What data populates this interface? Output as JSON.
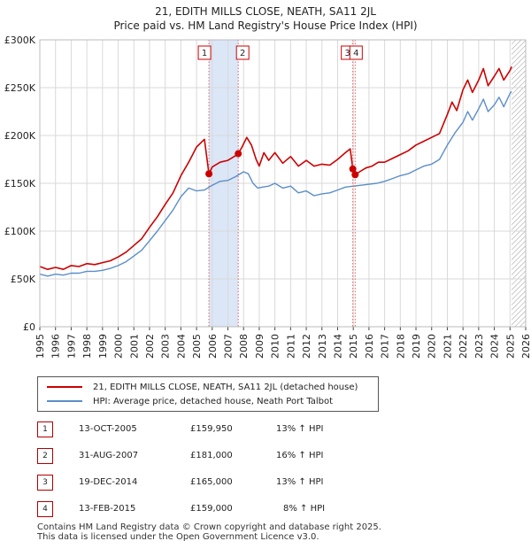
{
  "title_line1": "21, EDITH MILLS CLOSE, NEATH, SA11 2JL",
  "title_line2": "Price paid vs. HM Land Registry's House Price Index (HPI)",
  "chart_data": {
    "type": "line",
    "title": "Price paid vs. HM Land Registry's House Price Index (HPI)",
    "xlabel": "",
    "ylabel": "",
    "xlim": [
      1995,
      2026
    ],
    "ylim": [
      0,
      300000
    ],
    "y_ticks": [
      {
        "value": 0,
        "label": "£0"
      },
      {
        "value": 50000,
        "label": "£50K"
      },
      {
        "value": 100000,
        "label": "£100K"
      },
      {
        "value": 150000,
        "label": "£150K"
      },
      {
        "value": 200000,
        "label": "£200K"
      },
      {
        "value": 250000,
        "label": "£250K"
      },
      {
        "value": 300000,
        "label": "£300K"
      }
    ],
    "x_ticks": [
      "1995",
      "1996",
      "1997",
      "1998",
      "1999",
      "2000",
      "2001",
      "2002",
      "2003",
      "2004",
      "2005",
      "2006",
      "2007",
      "2008",
      "2009",
      "2010",
      "2011",
      "2012",
      "2013",
      "2014",
      "2015",
      "2016",
      "2017",
      "2018",
      "2019",
      "2020",
      "2021",
      "2022",
      "2023",
      "2024",
      "2025",
      "2026"
    ],
    "grid": true,
    "series": [
      {
        "name": "21, EDITH MILLS CLOSE, NEATH, SA11 2JL (detached house)",
        "color": "#cc0000",
        "x": [
          1995.0,
          1995.5,
          1996.0,
          1996.5,
          1997.0,
          1997.5,
          1998.0,
          1998.5,
          1999.0,
          1999.5,
          2000.0,
          2000.5,
          2001.0,
          2001.5,
          2002.0,
          2002.5,
          2003.0,
          2003.5,
          2004.0,
          2004.5,
          2005.0,
          2005.5,
          2005.79,
          2006.0,
          2006.5,
          2007.0,
          2007.5,
          2007.66,
          2007.9,
          2008.2,
          2008.5,
          2008.8,
          2009.0,
          2009.3,
          2009.6,
          2010.0,
          2010.5,
          2011.0,
          2011.5,
          2012.0,
          2012.5,
          2013.0,
          2013.5,
          2014.0,
          2014.5,
          2014.8,
          2014.97,
          2015.12,
          2015.4,
          2015.8,
          2016.2,
          2016.6,
          2017.0,
          2017.5,
          2018.0,
          2018.5,
          2019.0,
          2019.5,
          2020.0,
          2020.5,
          2021.0,
          2021.3,
          2021.6,
          2022.0,
          2022.3,
          2022.6,
          2023.0,
          2023.3,
          2023.6,
          2024.0,
          2024.3,
          2024.6,
          2025.0,
          2025.1
        ],
        "values": [
          63000,
          60000,
          62000,
          60000,
          64000,
          63000,
          66000,
          65000,
          67000,
          69000,
          73000,
          78000,
          85000,
          92000,
          104000,
          115000,
          128000,
          140000,
          158000,
          172000,
          188000,
          196000,
          159950,
          167000,
          172000,
          174000,
          179000,
          181000,
          188000,
          198000,
          190000,
          175000,
          168000,
          182000,
          174000,
          182000,
          171000,
          178000,
          168000,
          174000,
          168000,
          170000,
          169000,
          175000,
          182000,
          186000,
          165000,
          159000,
          162000,
          166000,
          168000,
          172000,
          172000,
          176000,
          180000,
          184000,
          190000,
          194000,
          198000,
          202000,
          222000,
          235000,
          226000,
          248000,
          258000,
          245000,
          258000,
          270000,
          252000,
          262000,
          270000,
          258000,
          268000,
          272000
        ]
      },
      {
        "name": "HPI: Average price, detached house, Neath Port Talbot",
        "color": "#5b8ec9",
        "x": [
          1995.0,
          1995.5,
          1996.0,
          1996.5,
          1997.0,
          1997.5,
          1998.0,
          1998.5,
          1999.0,
          1999.5,
          2000.0,
          2000.5,
          2001.0,
          2001.5,
          2002.0,
          2002.5,
          2003.0,
          2003.5,
          2004.0,
          2004.5,
          2005.0,
          2005.5,
          2006.0,
          2006.5,
          2007.0,
          2007.5,
          2008.0,
          2008.3,
          2008.6,
          2008.9,
          2009.2,
          2009.6,
          2010.0,
          2010.5,
          2011.0,
          2011.5,
          2012.0,
          2012.5,
          2013.0,
          2013.5,
          2014.0,
          2014.5,
          2015.0,
          2015.5,
          2016.0,
          2016.5,
          2017.0,
          2017.5,
          2018.0,
          2018.5,
          2019.0,
          2019.5,
          2020.0,
          2020.5,
          2021.0,
          2021.5,
          2022.0,
          2022.3,
          2022.6,
          2023.0,
          2023.3,
          2023.6,
          2024.0,
          2024.3,
          2024.6,
          2025.0,
          2025.1
        ],
        "values": [
          55000,
          53000,
          55000,
          54000,
          56000,
          56000,
          58000,
          58000,
          59000,
          61000,
          64000,
          68000,
          74000,
          80000,
          90000,
          100000,
          111000,
          122000,
          136000,
          145000,
          142000,
          143000,
          148000,
          152000,
          153000,
          157000,
          162000,
          160000,
          150000,
          145000,
          146000,
          147000,
          150000,
          145000,
          147000,
          140000,
          142000,
          137000,
          139000,
          140000,
          143000,
          146000,
          147000,
          148000,
          149000,
          150000,
          152000,
          155000,
          158000,
          160000,
          164000,
          168000,
          170000,
          175000,
          190000,
          203000,
          214000,
          225000,
          216000,
          228000,
          238000,
          225000,
          232000,
          240000,
          230000,
          244000,
          246000
        ]
      }
    ],
    "sales": [
      {
        "id": "1",
        "x": 2005.79,
        "value": 159950
      },
      {
        "id": "2",
        "x": 2007.66,
        "value": 181000
      },
      {
        "id": "3",
        "x": 2014.97,
        "value": 165000
      },
      {
        "id": "4",
        "x": 2015.12,
        "value": 159000
      }
    ],
    "shaded_period": [
      2005.79,
      2007.66
    ],
    "hatched_from": 2025.1
  },
  "legend": {
    "price_paid": "21, EDITH MILLS CLOSE, NEATH, SA11 2JL (detached house)",
    "hpi": "HPI: Average price, detached house, Neath Port Talbot"
  },
  "colors": {
    "price": "#cc0000",
    "hpi": "#5b8ec9",
    "shade": "#dbe6f7"
  },
  "transactions": [
    {
      "num": "1",
      "date": "13-OCT-2005",
      "price": "£159,950",
      "hpi": "13% ↑ HPI"
    },
    {
      "num": "2",
      "date": "31-AUG-2007",
      "price": "£181,000",
      "hpi": "16% ↑ HPI"
    },
    {
      "num": "3",
      "date": "19-DEC-2014",
      "price": "£165,000",
      "hpi": "13% ↑ HPI"
    },
    {
      "num": "4",
      "date": "13-FEB-2015",
      "price": "£159,000",
      "hpi": "8% ↑ HPI"
    }
  ],
  "footer_line1": "Contains HM Land Registry data © Crown copyright and database right 2025.",
  "footer_line2": "This data is licensed under the Open Government Licence v3.0."
}
